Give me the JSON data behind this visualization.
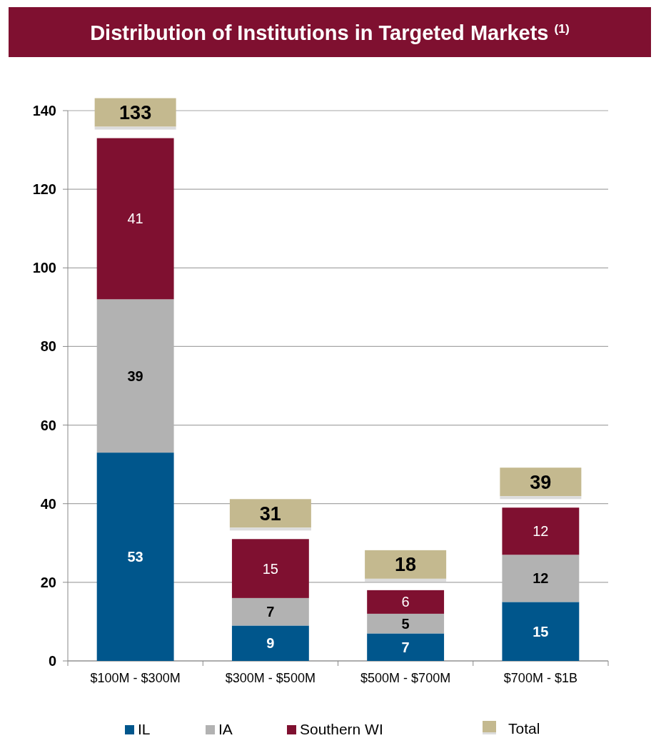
{
  "chart_data": {
    "type": "bar",
    "title": "Distribution of Institutions in Targeted Markets $^{(1)}$",
    "categories": [
      "$100M - $300M",
      "$300M - $500M",
      "$500M - $700M",
      "$700M - $1B"
    ],
    "series": [
      {
        "name": "IL",
        "color": "#00568c",
        "values": [
          53,
          9,
          7,
          15
        ]
      },
      {
        "name": "IA",
        "color": "#b2b2b2",
        "values": [
          39,
          7,
          5,
          12
        ]
      },
      {
        "name": "Southern WI",
        "color": "#7f1030",
        "values": [
          41,
          15,
          6,
          12
        ]
      }
    ],
    "stacked": true,
    "data_labels": true,
    "totals": [
      "133",
      "31",
      "18",
      "39"
    ],
    "annotations": [
      "Total"
    ],
    "ylim": [
      0,
      140
    ],
    "yticks": [
      0,
      20,
      40,
      60,
      80,
      100,
      120,
      140
    ],
    "grid": "y",
    "legend": "bottom"
  }
}
